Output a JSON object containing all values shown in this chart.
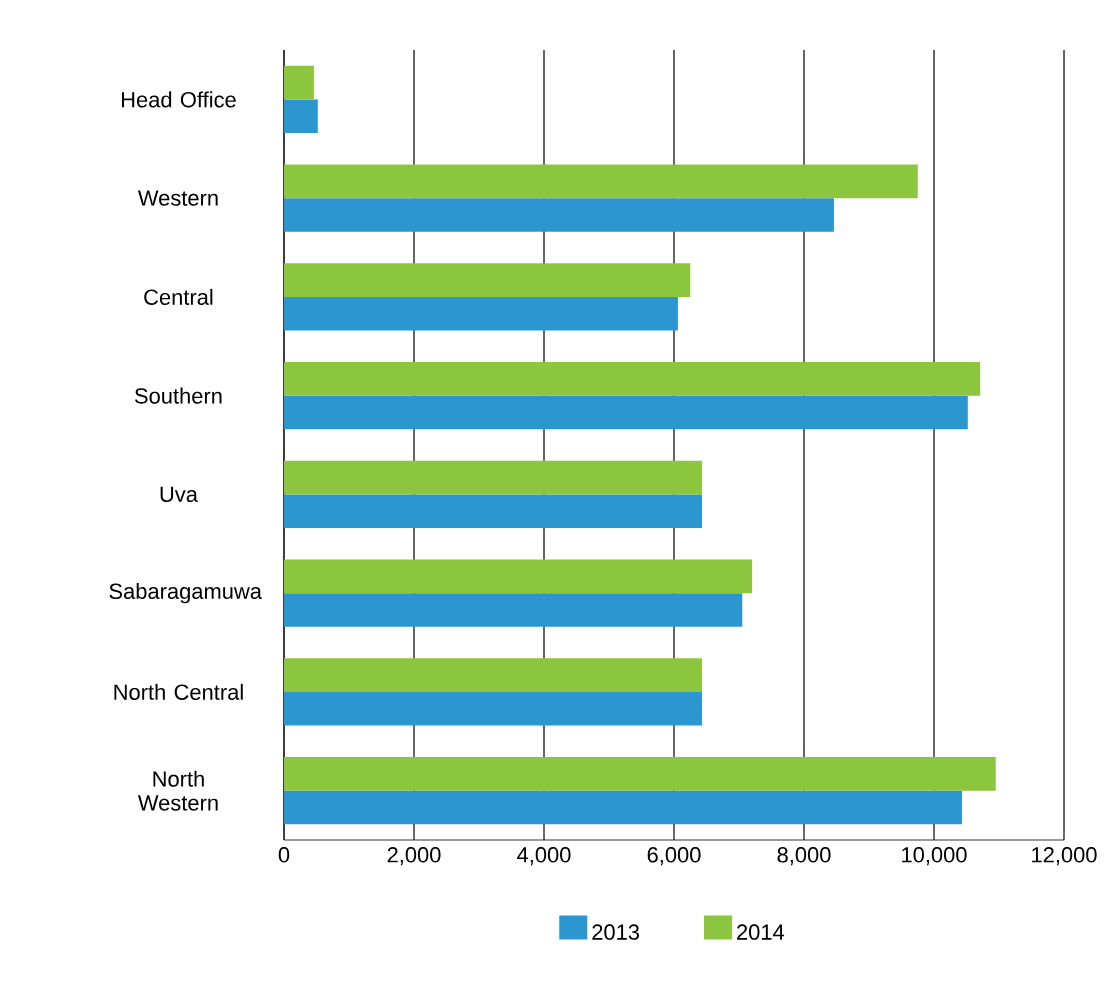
{
  "chart_data": {
    "type": "bar",
    "orientation": "horizontal",
    "categories": [
      "Head Office",
      "Western",
      "Central",
      "Southern",
      "Uva",
      "Sabaragamuwa",
      "North Central",
      "North Western"
    ],
    "series": [
      {
        "name": "2013",
        "color": "#2b96cf",
        "values": [
          520,
          8460,
          6060,
          10520,
          6430,
          7050,
          6430,
          10430
        ]
      },
      {
        "name": "2014",
        "color": "#8cc63f",
        "values": [
          460,
          9750,
          6250,
          10710,
          6430,
          7200,
          6430,
          10950
        ]
      }
    ],
    "xlim": [
      0,
      12000
    ],
    "xticks": [
      0,
      {
        "value": 2000,
        "label": "2,000"
      },
      {
        "value": 4000,
        "label": "4,000"
      },
      {
        "value": 6000,
        "label": "6,000"
      },
      {
        "value": 8000,
        "label": "8,000"
      },
      {
        "value": 10000,
        "label": "10,000"
      },
      {
        "value": 12000,
        "label": "12,000"
      }
    ],
    "grid": "x",
    "legend": "bottom"
  }
}
